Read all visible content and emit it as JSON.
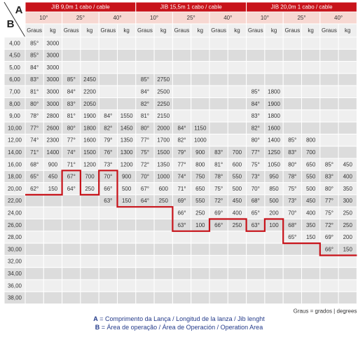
{
  "corner": {
    "a": "A",
    "b": "B"
  },
  "jibs": [
    {
      "title": "JIB 9,0m 1 cabo / cable",
      "angles": [
        "10°",
        "25°",
        "40°"
      ]
    },
    {
      "title": "JIB 15,5m 1 cabo / cable",
      "angles": [
        "10°",
        "25°",
        "40°"
      ]
    },
    {
      "title": "JIB 20,0m 1 cabo / cable",
      "angles": [
        "10°",
        "25°",
        "40°"
      ]
    }
  ],
  "subheaders": [
    "Graus",
    "kg"
  ],
  "rows": [
    {
      "r": "4,00",
      "v": [
        "85°",
        "3000",
        "",
        "",
        "",
        "",
        "",
        "",
        "",
        "",
        "",
        "",
        "",
        "",
        "",
        "",
        "",
        ""
      ]
    },
    {
      "r": "4,50",
      "v": [
        "85°",
        "3000",
        "",
        "",
        "",
        "",
        "",
        "",
        "",
        "",
        "",
        "",
        "",
        "",
        "",
        "",
        "",
        ""
      ]
    },
    {
      "r": "5,00",
      "v": [
        "84°",
        "3000",
        "",
        "",
        "",
        "",
        "",
        "",
        "",
        "",
        "",
        "",
        "",
        "",
        "",
        "",
        "",
        ""
      ]
    },
    {
      "r": "6,00",
      "v": [
        "83°",
        "3000",
        "85°",
        "2450",
        "",
        "",
        "85°",
        "2750",
        "",
        "",
        "",
        "",
        "",
        "",
        "",
        "",
        "",
        ""
      ]
    },
    {
      "r": "7,00",
      "v": [
        "81°",
        "3000",
        "84°",
        "2200",
        "",
        "",
        "84°",
        "2500",
        "",
        "",
        "",
        "",
        "85°",
        "1800",
        "",
        "",
        "",
        ""
      ]
    },
    {
      "r": "8,00",
      "v": [
        "80°",
        "3000",
        "83°",
        "2050",
        "",
        "",
        "82°",
        "2250",
        "",
        "",
        "",
        "",
        "84°",
        "1900",
        "",
        "",
        "",
        ""
      ]
    },
    {
      "r": "9,00",
      "v": [
        "78°",
        "2800",
        "81°",
        "1900",
        "84°",
        "1550",
        "81°",
        "2150",
        "",
        "",
        "",
        "",
        "83°",
        "1800",
        "",
        "",
        "",
        ""
      ]
    },
    {
      "r": "10,00",
      "v": [
        "77°",
        "2600",
        "80°",
        "1800",
        "82°",
        "1450",
        "80°",
        "2000",
        "84°",
        "1150",
        "",
        "",
        "82°",
        "1600",
        "",
        "",
        "",
        ""
      ]
    },
    {
      "r": "12,00",
      "v": [
        "74°",
        "2300",
        "77°",
        "1600",
        "79°",
        "1350",
        "77°",
        "1700",
        "82°",
        "1000",
        "",
        "",
        "80°",
        "1400",
        "85°",
        "800",
        "",
        ""
      ]
    },
    {
      "r": "14,00",
      "v": [
        "71°",
        "1400",
        "74°",
        "1500",
        "76°",
        "1300",
        "75°",
        "1500",
        "79°",
        "900",
        "83°",
        "700",
        "77°",
        "1250",
        "83°",
        "700",
        "",
        ""
      ]
    },
    {
      "r": "16,00",
      "v": [
        "68°",
        "900",
        "71°",
        "1200",
        "73°",
        "1200",
        "72°",
        "1350",
        "77°",
        "800",
        "81°",
        "600",
        "75°",
        "1050",
        "80°",
        "650",
        "85°",
        "450"
      ]
    },
    {
      "r": "18,00",
      "v": [
        "65°",
        "450",
        "67°",
        "700",
        "70°",
        "900",
        "70°",
        "1000",
        "74°",
        "750",
        "78°",
        "550",
        "73°",
        "950",
        "78°",
        "550",
        "83°",
        "400"
      ]
    },
    {
      "r": "20,00",
      "v": [
        "62°",
        "150",
        "64°",
        "250",
        "66°",
        "500",
        "67°",
        "600",
        "71°",
        "650",
        "75°",
        "500",
        "70°",
        "850",
        "75°",
        "500",
        "80°",
        "350"
      ]
    },
    {
      "r": "22,00",
      "v": [
        "",
        "",
        "",
        "",
        "63°",
        "150",
        "64°",
        "250",
        "69°",
        "550",
        "72°",
        "450",
        "68°",
        "500",
        "73°",
        "450",
        "77°",
        "300"
      ]
    },
    {
      "r": "24,00",
      "v": [
        "",
        "",
        "",
        "",
        "",
        "",
        "",
        "",
        "66°",
        "250",
        "69°",
        "400",
        "65°",
        "200",
        "70°",
        "400",
        "75°",
        "250"
      ]
    },
    {
      "r": "26,00",
      "v": [
        "",
        "",
        "",
        "",
        "",
        "",
        "",
        "",
        "63°",
        "100",
        "66°",
        "250",
        "63°",
        "100",
        "68°",
        "350",
        "72°",
        "250"
      ]
    },
    {
      "r": "28,00",
      "v": [
        "",
        "",
        "",
        "",
        "",
        "",
        "",
        "",
        "",
        "",
        "",
        "",
        "",
        "",
        "65°",
        "150",
        "69°",
        "200"
      ]
    },
    {
      "r": "30,00",
      "v": [
        "",
        "",
        "",
        "",
        "",
        "",
        "",
        "",
        "",
        "",
        "",
        "",
        "",
        "",
        "",
        "",
        "66°",
        "150"
      ]
    },
    {
      "r": "32,00",
      "v": [
        "",
        "",
        "",
        "",
        "",
        "",
        "",
        "",
        "",
        "",
        "",
        "",
        "",
        "",
        "",
        "",
        "",
        ""
      ]
    },
    {
      "r": "34,00",
      "v": [
        "",
        "",
        "",
        "",
        "",
        "",
        "",
        "",
        "",
        "",
        "",
        "",
        "",
        "",
        "",
        "",
        "",
        ""
      ]
    },
    {
      "r": "36,00",
      "v": [
        "",
        "",
        "",
        "",
        "",
        "",
        "",
        "",
        "",
        "",
        "",
        "",
        "",
        "",
        "",
        "",
        "",
        ""
      ]
    },
    {
      "r": "38,00",
      "v": [
        "",
        "",
        "",
        "",
        "",
        "",
        "",
        "",
        "",
        "",
        "",
        "",
        "",
        "",
        "",
        "",
        "",
        ""
      ]
    }
  ],
  "work_area_boundary_last_row": [
    12,
    12,
    10,
    12,
    10,
    13,
    13,
    13,
    15,
    15,
    14,
    14,
    15,
    14,
    16,
    16,
    17,
    17
  ],
  "note": "Graus = grados | degrees",
  "legend": {
    "a_key": "A",
    "a_text": " = Comprimento da Lança / Longitud de la lanza / Jib lenght",
    "b_key": "B",
    "b_text": " = Área de operação / Área de Operación / Operation Area"
  },
  "colors": {
    "header_red": "#c8131a",
    "angle_row": "#f7d8d2",
    "row_odd": "#efefef",
    "row_even": "#dcdcdc",
    "grid": "#ffffff",
    "boundary_line": "#c8131a",
    "legend_text": "#233a8a"
  }
}
